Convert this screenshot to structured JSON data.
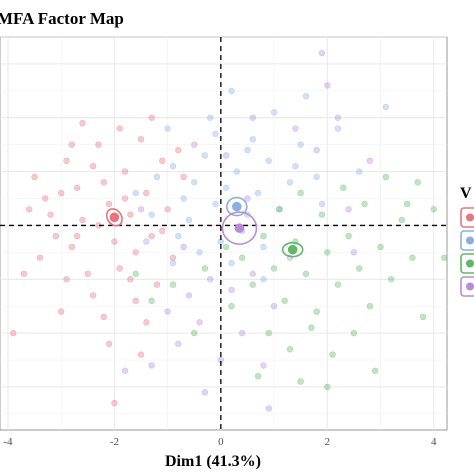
{
  "chart_data": {
    "type": "scatter",
    "title": "MFA Factor Map",
    "xlabel": "Dim1 (41.3%)",
    "ylabel": "",
    "x_ticks": [
      -4,
      -2,
      0,
      2,
      4
    ],
    "xlim": [
      -4.15,
      4.25
    ],
    "ylim": [
      -3.8,
      3.5
    ],
    "grid": true,
    "reference_lines": {
      "x": 0,
      "y": 0,
      "style": "dashed"
    },
    "legend": {
      "title": "V",
      "position": "right",
      "entries_visible": 4,
      "labels_visible": false
    },
    "series": [
      {
        "color": "#e8747c",
        "center": [
          -2.0,
          0.15
        ],
        "points": [
          [
            -3.5,
            0.9
          ],
          [
            -3.3,
            0.5
          ],
          [
            -3.1,
            -0.2
          ],
          [
            -3.4,
            -0.6
          ],
          [
            -2.9,
            1.2
          ],
          [
            -2.7,
            0.7
          ],
          [
            -2.6,
            0.1
          ],
          [
            -2.8,
            -0.4
          ],
          [
            -2.5,
            -0.9
          ],
          [
            -2.3,
            1.5
          ],
          [
            -2.2,
            0.8
          ],
          [
            -2.1,
            0.4
          ],
          [
            -2.0,
            -0.3
          ],
          [
            -1.9,
            -0.8
          ],
          [
            -1.8,
            1.0
          ],
          [
            -1.7,
            0.2
          ],
          [
            -1.6,
            -0.5
          ],
          [
            -1.5,
            1.6
          ],
          [
            -1.4,
            0.6
          ],
          [
            -1.3,
            -0.2
          ],
          [
            -1.2,
            -1.1
          ],
          [
            -1.1,
            1.2
          ],
          [
            -1.0,
            0.3
          ],
          [
            -0.9,
            -0.6
          ],
          [
            -2.4,
            -1.3
          ],
          [
            -2.9,
            -1.0
          ],
          [
            -3.2,
            0.2
          ],
          [
            -3.6,
            0.3
          ],
          [
            -2.6,
            1.9
          ],
          [
            -1.9,
            1.8
          ],
          [
            -1.3,
            2.0
          ],
          [
            -0.8,
            1.4
          ],
          [
            -3.0,
            -1.6
          ],
          [
            -2.2,
            -1.7
          ],
          [
            -1.6,
            -1.4
          ],
          [
            -2.1,
            -2.2
          ],
          [
            -3.9,
            -2.0
          ],
          [
            -3.7,
            -0.9
          ],
          [
            -1.5,
            -2.4
          ],
          [
            -2.0,
            -3.3
          ],
          [
            -0.7,
            0.9
          ],
          [
            -2.3,
            0.0
          ],
          [
            -1.7,
            -1.0
          ],
          [
            -2.7,
            -0.2
          ],
          [
            -1.8,
            0.5
          ],
          [
            -3.0,
            0.6
          ],
          [
            -2.4,
            1.1
          ],
          [
            -1.1,
            -0.1
          ],
          [
            -2.8,
            1.5
          ],
          [
            -1.4,
            -1.8
          ]
        ]
      },
      {
        "color": "#8ab0e2",
        "center": [
          0.3,
          0.35
        ],
        "points": [
          [
            -1.6,
            0.6
          ],
          [
            -1.2,
            0.9
          ],
          [
            -0.9,
            1.1
          ],
          [
            -0.7,
            0.5
          ],
          [
            -0.5,
            0.8
          ],
          [
            -0.3,
            1.3
          ],
          [
            -0.1,
            0.4
          ],
          [
            0.1,
            0.7
          ],
          [
            0.3,
            1.0
          ],
          [
            0.5,
            0.2
          ],
          [
            0.7,
            0.6
          ],
          [
            0.9,
            1.2
          ],
          [
            1.1,
            0.3
          ],
          [
            1.3,
            0.8
          ],
          [
            -0.8,
            -0.2
          ],
          [
            -0.4,
            -0.5
          ],
          [
            0.0,
            -0.3
          ],
          [
            0.4,
            -0.1
          ],
          [
            0.8,
            -0.4
          ],
          [
            -1.0,
            1.8
          ],
          [
            -0.2,
            2.0
          ],
          [
            0.6,
            1.6
          ],
          [
            1.0,
            2.1
          ],
          [
            1.5,
            1.5
          ],
          [
            -1.4,
            -0.3
          ],
          [
            0.2,
            -0.7
          ],
          [
            -0.6,
            0.1
          ],
          [
            1.8,
            0.9
          ],
          [
            2.2,
            1.8
          ],
          [
            -0.1,
            1.7
          ],
          [
            0.8,
            -1.0
          ],
          [
            1.4,
            1.1
          ],
          [
            -1.3,
            0.2
          ],
          [
            0.2,
            2.5
          ],
          [
            1.9,
            0.4
          ],
          [
            -0.9,
            -0.7
          ],
          [
            0.5,
            1.4
          ],
          [
            2.6,
            1.0
          ],
          [
            3.1,
            2.2
          ],
          [
            1.6,
            2.4
          ]
        ]
      },
      {
        "color": "#5db963",
        "center": [
          1.35,
          -0.45
        ],
        "points": [
          [
            0.4,
            -0.6
          ],
          [
            0.6,
            -1.1
          ],
          [
            0.8,
            -0.2
          ],
          [
            1.0,
            -0.8
          ],
          [
            1.2,
            -1.4
          ],
          [
            1.4,
            -0.3
          ],
          [
            1.6,
            -0.9
          ],
          [
            1.8,
            -1.6
          ],
          [
            2.0,
            -0.5
          ],
          [
            2.2,
            -1.1
          ],
          [
            2.4,
            -0.2
          ],
          [
            2.6,
            -0.8
          ],
          [
            2.8,
            -1.5
          ],
          [
            3.0,
            -0.4
          ],
          [
            3.2,
            -1.0
          ],
          [
            3.4,
            0.1
          ],
          [
            1.1,
            0.3
          ],
          [
            1.5,
            0.6
          ],
          [
            1.9,
            0.2
          ],
          [
            2.3,
            0.7
          ],
          [
            2.7,
            0.4
          ],
          [
            3.1,
            0.9
          ],
          [
            0.9,
            -2.0
          ],
          [
            1.3,
            -2.3
          ],
          [
            1.7,
            -1.9
          ],
          [
            2.1,
            -2.4
          ],
          [
            2.5,
            -2.0
          ],
          [
            -0.3,
            -0.8
          ],
          [
            -0.9,
            -1.1
          ],
          [
            -1.3,
            -1.4
          ],
          [
            -1.6,
            -0.9
          ],
          [
            0.2,
            -1.5
          ],
          [
            3.6,
            -0.6
          ],
          [
            3.8,
            -1.7
          ],
          [
            4.2,
            -0.6
          ],
          [
            3.5,
            0.4
          ],
          [
            0.7,
            -2.8
          ],
          [
            1.5,
            -2.9
          ],
          [
            2.9,
            -2.7
          ],
          [
            -0.5,
            -2.0
          ],
          [
            3.7,
            0.8
          ],
          [
            2.0,
            -3.0
          ],
          [
            0.1,
            -0.4
          ],
          [
            4.0,
            0.3
          ]
        ]
      },
      {
        "color": "#b98ad8",
        "center": [
          0.35,
          -0.05
        ],
        "points": [
          [
            -1.0,
            -1.6
          ],
          [
            -0.6,
            -1.3
          ],
          [
            -0.2,
            -1.0
          ],
          [
            0.2,
            -1.2
          ],
          [
            0.6,
            -0.9
          ],
          [
            1.0,
            -1.5
          ],
          [
            -0.8,
            -2.2
          ],
          [
            -0.4,
            -1.8
          ],
          [
            0.0,
            -2.5
          ],
          [
            0.4,
            -2.0
          ],
          [
            0.8,
            -2.6
          ],
          [
            -1.3,
            -2.6
          ],
          [
            1.4,
            1.8
          ],
          [
            1.8,
            1.4
          ],
          [
            2.2,
            2.0
          ],
          [
            0.6,
            2.0
          ],
          [
            -0.5,
            1.5
          ],
          [
            2.8,
            1.2
          ],
          [
            2.5,
            -0.5
          ],
          [
            -1.5,
            0.3
          ],
          [
            0.1,
            1.3
          ],
          [
            1.3,
            -0.6
          ],
          [
            -0.3,
            -3.1
          ],
          [
            0.9,
            -3.4
          ],
          [
            -1.8,
            -2.7
          ],
          [
            2.0,
            2.6
          ],
          [
            1.9,
            3.2
          ],
          [
            2.4,
            0.3
          ],
          [
            -0.7,
            -0.4
          ],
          [
            0.5,
            0.5
          ]
        ]
      }
    ]
  }
}
